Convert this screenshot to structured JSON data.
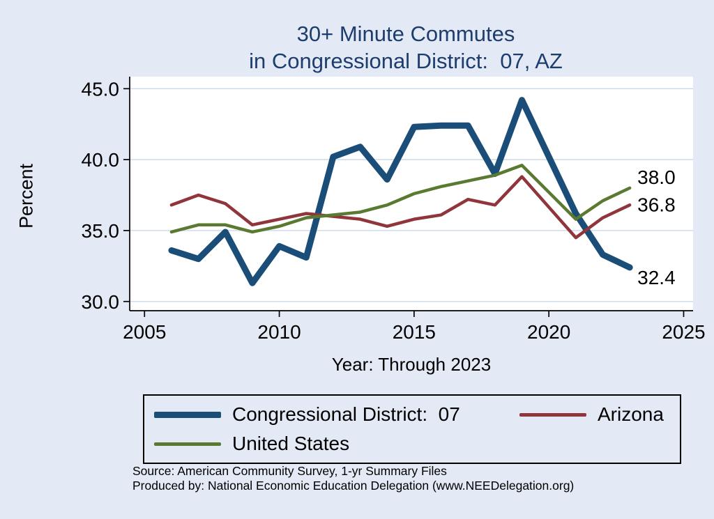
{
  "chart_data": {
    "type": "line",
    "title": "30+ Minute Commutes in Congressional District:  07, AZ",
    "title_lines": [
      "30+ Minute Commutes",
      "in Congressional District:  07, AZ"
    ],
    "xlabel": "Year: Through 2023",
    "ylabel": "Percent",
    "x": [
      2006,
      2007,
      2008,
      2009,
      2010,
      2011,
      2012,
      2013,
      2014,
      2015,
      2016,
      2017,
      2018,
      2019,
      2021,
      2022,
      2023
    ],
    "series": [
      {
        "name": "Congressional District:  07",
        "color": "#1a4e79",
        "width": 9,
        "end_label": "32.4",
        "values": [
          33.6,
          33.0,
          34.9,
          31.3,
          33.9,
          33.1,
          40.2,
          40.9,
          38.6,
          42.3,
          42.4,
          42.4,
          39.0,
          44.2,
          36.2,
          33.3,
          32.4
        ]
      },
      {
        "name": "Arizona",
        "color": "#90353b",
        "width": 4.5,
        "end_label": "36.8",
        "values": [
          36.8,
          37.5,
          36.9,
          35.4,
          35.8,
          36.2,
          36.0,
          35.8,
          35.3,
          35.8,
          36.1,
          37.2,
          36.8,
          38.8,
          34.5,
          35.9,
          36.8
        ]
      },
      {
        "name": "United States",
        "color": "#5a7a31",
        "width": 4.5,
        "end_label": "38.0",
        "values": [
          34.9,
          35.4,
          35.4,
          34.9,
          35.3,
          35.9,
          36.1,
          36.3,
          36.8,
          37.6,
          38.1,
          38.5,
          38.9,
          39.6,
          35.8,
          37.1,
          38.0
        ]
      }
    ],
    "yticks": [
      30.0,
      35.0,
      40.0,
      45.0
    ],
    "xticks": [
      2005,
      2010,
      2015,
      2020,
      2025
    ],
    "ylim": [
      29.35,
      45.85
    ],
    "xlim": [
      2004.45,
      2025.35
    ],
    "grid": true,
    "legend_position": "bottom",
    "colors": {
      "background": "#e4eaf5",
      "plot_background": "#ffffff",
      "gridline": "#ccd9ea",
      "axis": "#000000",
      "title": "#1d3d6e"
    }
  },
  "footer": {
    "source": "Source: American Community Survey, 1-yr Summary Files",
    "produced": "Produced by: National Economic Education Delegation (www.NEEDelegation.org)"
  }
}
